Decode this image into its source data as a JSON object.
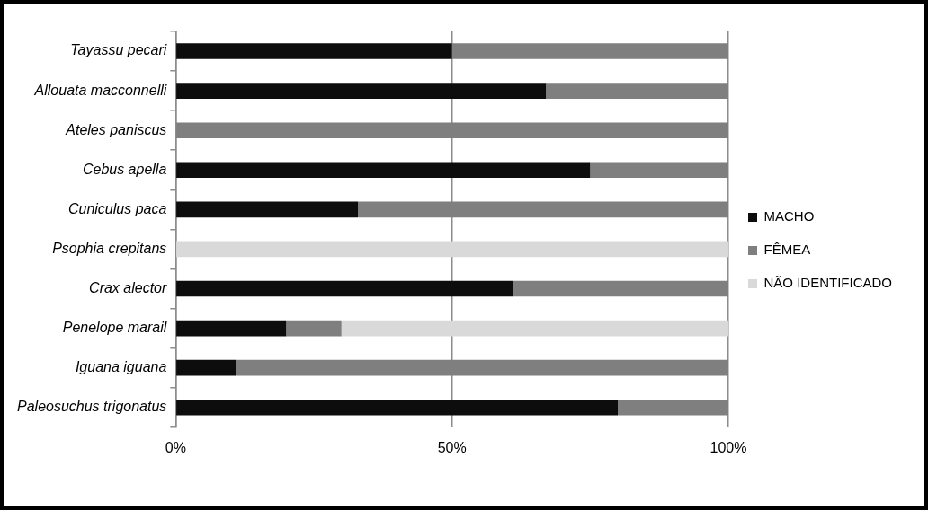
{
  "chart_data": {
    "type": "bar",
    "orientation": "horizontal",
    "stacked": true,
    "categories": [
      "Tayassu pecari",
      "Allouata macconnelli",
      "Ateles paniscus",
      "Cebus apella",
      "Cuniculus paca",
      "Psophia crepitans",
      "Crax alector",
      "Penelope marail",
      "Iguana iguana",
      "Paleosuchus trigonatus"
    ],
    "series": [
      {
        "name": "MACHO",
        "color": "#0d0d0d",
        "values": [
          50,
          67,
          0,
          75,
          33,
          0,
          61,
          20,
          11,
          80
        ]
      },
      {
        "name": "FÊMEA",
        "color": "#7f7f7f",
        "values": [
          50,
          33,
          100,
          25,
          67,
          0,
          39,
          10,
          89,
          20
        ]
      },
      {
        "name": "NÃO IDENTIFICADO",
        "color": "#d9d9d9",
        "values": [
          0,
          0,
          0,
          0,
          0,
          100,
          0,
          70,
          0,
          0
        ]
      }
    ],
    "xlim": [
      0,
      100
    ],
    "xticks": [
      {
        "value": 0,
        "label": "0%"
      },
      {
        "value": 50,
        "label": "50%"
      },
      {
        "value": 100,
        "label": "100%"
      }
    ],
    "grid": "x",
    "legend": "right"
  }
}
